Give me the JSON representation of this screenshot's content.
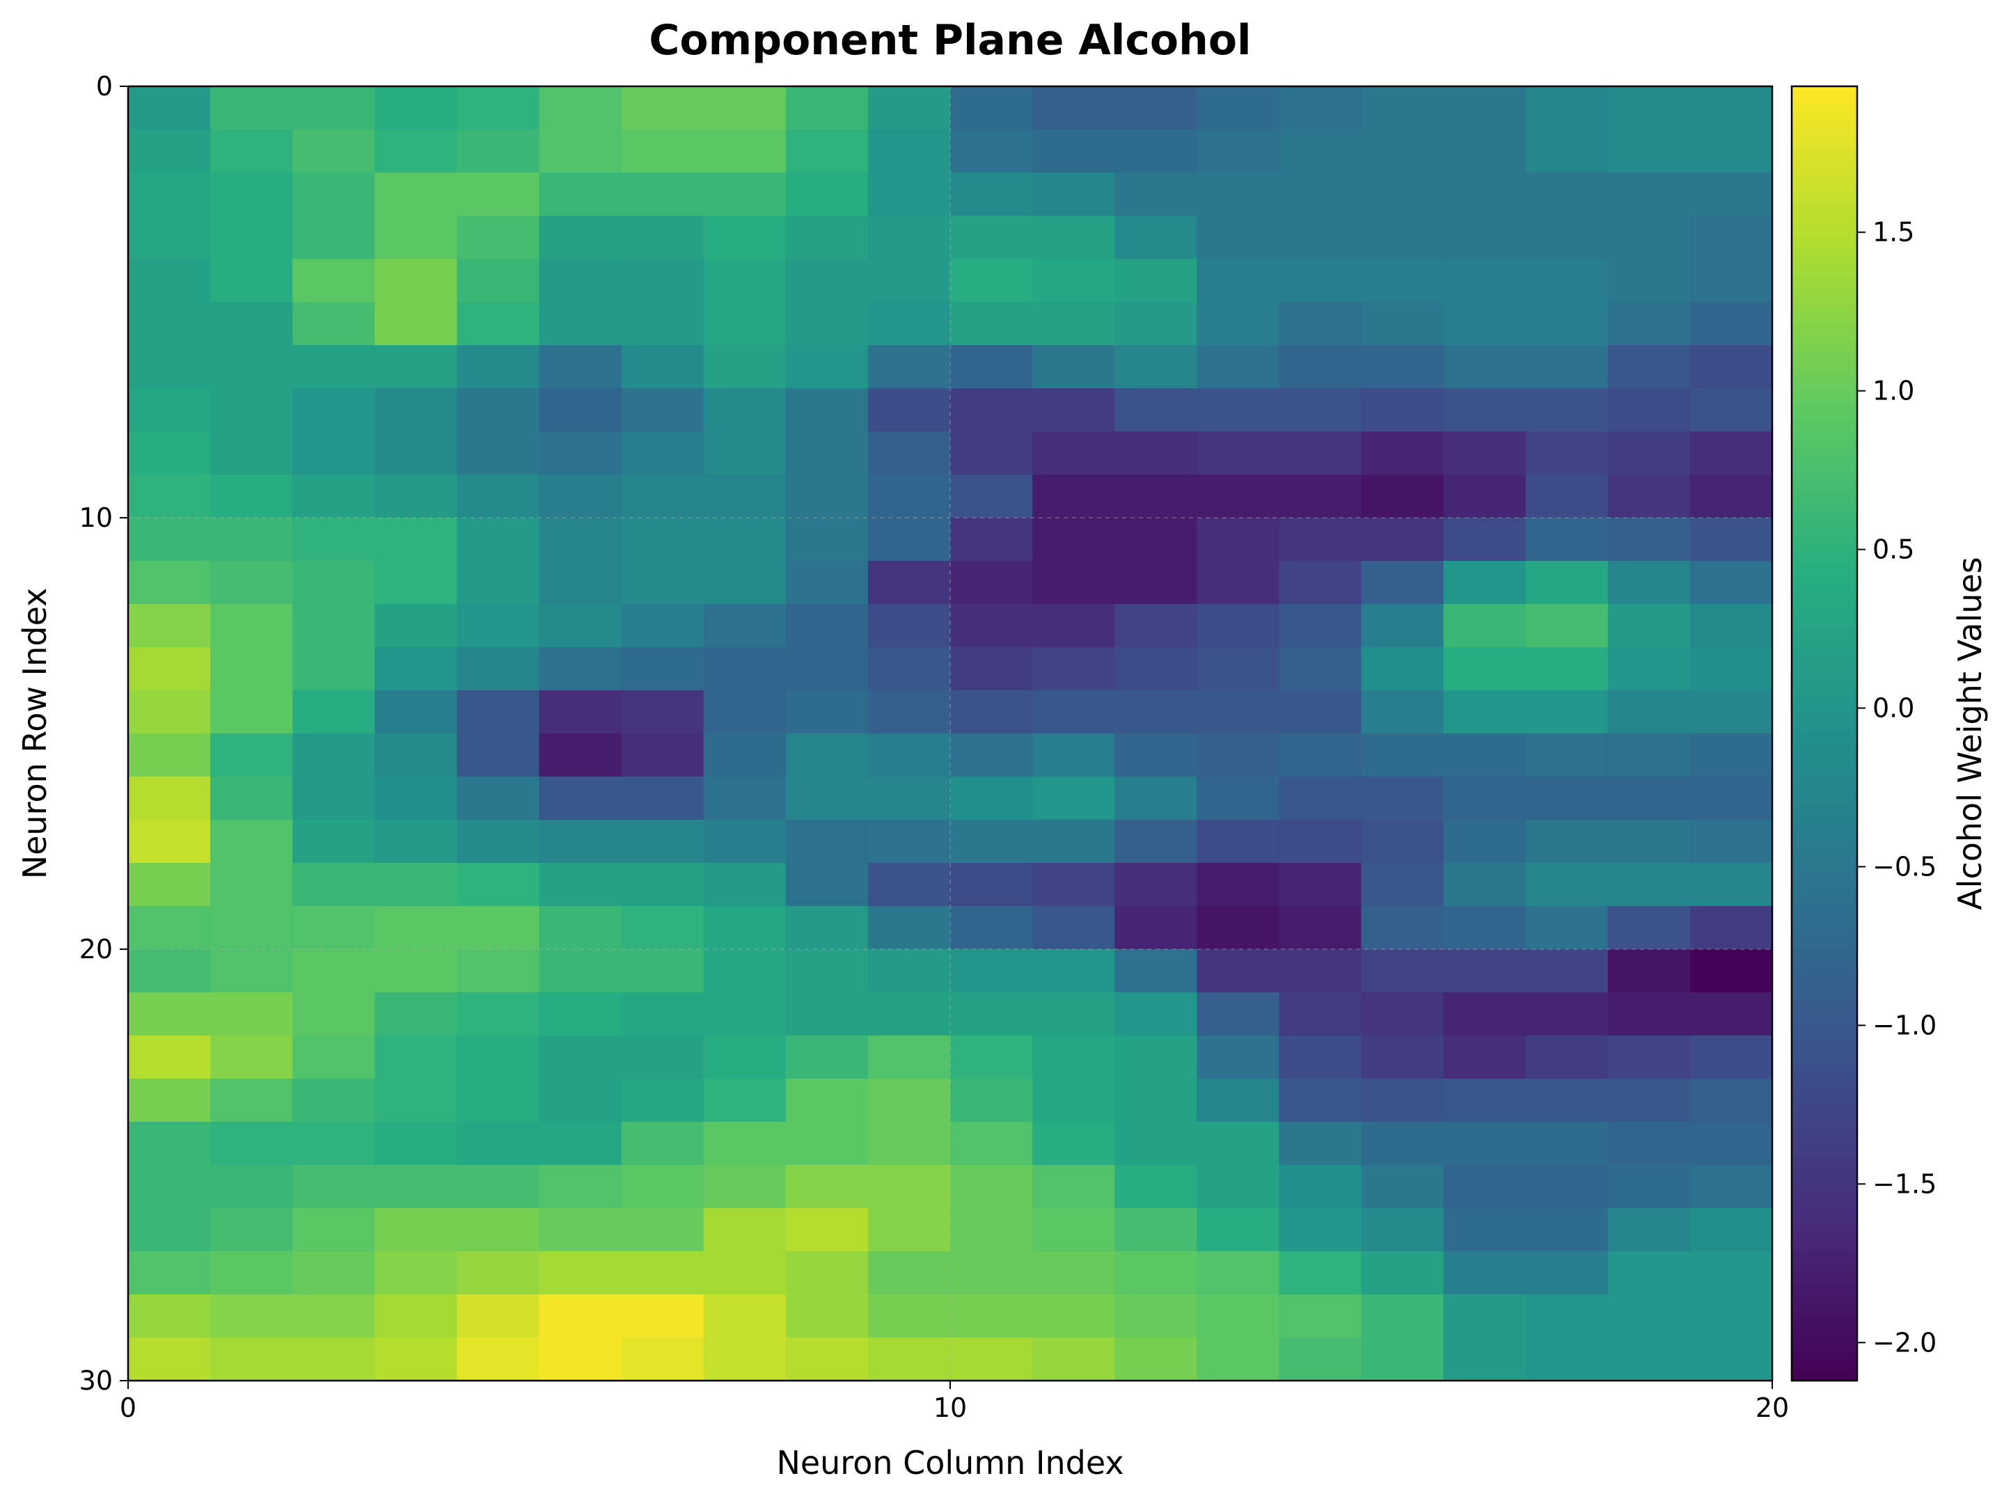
{
  "chart_data": {
    "type": "heatmap",
    "title": "Component Plane Alcohol",
    "xlabel": "Neuron Column Index",
    "ylabel": "Neuron Row Index",
    "colorbar_label": "Alcohol Weight Values",
    "colormap": "viridis",
    "xlim": [
      0,
      20
    ],
    "ylim": [
      30,
      0
    ],
    "xticks": [
      "0",
      "10",
      "20"
    ],
    "yticks": [
      "0",
      "10",
      "20",
      "30"
    ],
    "cbar_range": [
      -2.12,
      1.96
    ],
    "cbar_ticks": [
      "1.5",
      "1.0",
      "0.5",
      "0.0",
      "−0.5",
      "−1.0",
      "−1.5",
      "−2.0"
    ],
    "cbar_tick_values": [
      1.5,
      1.0,
      0.5,
      0.0,
      -0.5,
      -1.0,
      -1.5,
      -2.0
    ],
    "grid": true,
    "rows": 30,
    "cols": 20,
    "values": [
      [
        0.1,
        0.6,
        0.6,
        0.4,
        0.5,
        0.8,
        1.0,
        1.0,
        0.6,
        0.1,
        -0.7,
        -0.9,
        -0.9,
        -0.7,
        -0.6,
        -0.5,
        -0.5,
        -0.3,
        -0.2,
        -0.2
      ],
      [
        0.2,
        0.5,
        0.7,
        0.5,
        0.6,
        0.8,
        0.9,
        0.9,
        0.5,
        0.0,
        -0.6,
        -0.7,
        -0.7,
        -0.6,
        -0.5,
        -0.5,
        -0.5,
        -0.3,
        -0.2,
        -0.2
      ],
      [
        0.3,
        0.4,
        0.6,
        0.9,
        0.9,
        0.6,
        0.6,
        0.6,
        0.4,
        0.0,
        -0.2,
        -0.3,
        -0.5,
        -0.5,
        -0.5,
        -0.5,
        -0.5,
        -0.5,
        -0.5,
        -0.5
      ],
      [
        0.3,
        0.4,
        0.6,
        0.9,
        0.7,
        0.2,
        0.2,
        0.4,
        0.2,
        0.1,
        0.2,
        0.2,
        -0.2,
        -0.5,
        -0.5,
        -0.5,
        -0.5,
        -0.5,
        -0.5,
        -0.6
      ],
      [
        0.2,
        0.4,
        0.9,
        1.1,
        0.6,
        0.1,
        0.1,
        0.3,
        0.1,
        0.1,
        0.4,
        0.3,
        0.2,
        -0.4,
        -0.4,
        -0.4,
        -0.4,
        -0.4,
        -0.5,
        -0.6
      ],
      [
        0.2,
        0.2,
        0.7,
        1.1,
        0.5,
        0.1,
        0.1,
        0.3,
        0.1,
        0.0,
        0.2,
        0.2,
        0.1,
        -0.4,
        -0.6,
        -0.5,
        -0.4,
        -0.4,
        -0.6,
        -0.8
      ],
      [
        0.2,
        0.2,
        0.2,
        0.2,
        -0.2,
        -0.6,
        -0.2,
        0.2,
        0.0,
        -0.6,
        -0.8,
        -0.5,
        -0.3,
        -0.6,
        -0.8,
        -0.8,
        -0.6,
        -0.6,
        -1.0,
        -1.2
      ],
      [
        0.3,
        0.2,
        0.0,
        -0.2,
        -0.5,
        -0.8,
        -0.6,
        -0.2,
        -0.5,
        -1.2,
        -1.4,
        -1.4,
        -1.1,
        -1.1,
        -1.1,
        -1.2,
        -1.1,
        -1.1,
        -1.2,
        -1.1
      ],
      [
        0.4,
        0.2,
        0.0,
        -0.2,
        -0.5,
        -0.6,
        -0.4,
        -0.2,
        -0.5,
        -0.9,
        -1.4,
        -1.6,
        -1.6,
        -1.5,
        -1.5,
        -1.7,
        -1.6,
        -1.3,
        -1.4,
        -1.6
      ],
      [
        0.5,
        0.4,
        0.2,
        0.1,
        -0.2,
        -0.4,
        -0.3,
        -0.3,
        -0.5,
        -0.8,
        -1.1,
        -1.8,
        -1.8,
        -1.8,
        -1.8,
        -1.9,
        -1.7,
        -1.2,
        -1.5,
        -1.7
      ],
      [
        0.6,
        0.6,
        0.5,
        0.5,
        0.1,
        -0.3,
        -0.2,
        -0.2,
        -0.5,
        -0.8,
        -1.5,
        -1.8,
        -1.8,
        -1.6,
        -1.5,
        -1.5,
        -1.2,
        -0.8,
        -0.9,
        -1.1
      ],
      [
        0.8,
        0.7,
        0.6,
        0.5,
        0.1,
        -0.3,
        -0.2,
        -0.2,
        -0.6,
        -1.5,
        -1.7,
        -1.8,
        -1.8,
        -1.6,
        -1.3,
        -0.9,
        0.0,
        0.3,
        -0.3,
        -0.6
      ],
      [
        1.2,
        0.9,
        0.6,
        0.2,
        0.0,
        -0.2,
        -0.4,
        -0.6,
        -0.8,
        -1.2,
        -1.6,
        -1.6,
        -1.3,
        -1.2,
        -1.0,
        -0.4,
        0.6,
        0.7,
        0.1,
        -0.2
      ],
      [
        1.4,
        0.9,
        0.6,
        0.0,
        -0.3,
        -0.6,
        -0.7,
        -0.8,
        -0.8,
        -1.0,
        -1.4,
        -1.3,
        -1.2,
        -1.1,
        -0.9,
        -0.1,
        0.4,
        0.4,
        0.0,
        -0.1
      ],
      [
        1.3,
        0.9,
        0.4,
        -0.4,
        -1.0,
        -1.6,
        -1.5,
        -0.8,
        -0.7,
        -0.9,
        -1.1,
        -1.0,
        -1.0,
        -1.0,
        -1.0,
        -0.4,
        0.0,
        0.0,
        -0.3,
        -0.3
      ],
      [
        1.1,
        0.5,
        0.1,
        -0.2,
        -1.0,
        -1.8,
        -1.6,
        -0.7,
        -0.3,
        -0.4,
        -0.6,
        -0.4,
        -0.8,
        -0.9,
        -0.8,
        -0.7,
        -0.7,
        -0.6,
        -0.6,
        -0.7
      ],
      [
        1.5,
        0.6,
        0.1,
        -0.1,
        -0.5,
        -1.0,
        -1.0,
        -0.6,
        -0.3,
        -0.3,
        -0.1,
        0.0,
        -0.4,
        -0.8,
        -1.0,
        -1.0,
        -0.8,
        -0.8,
        -0.8,
        -0.8
      ],
      [
        1.6,
        0.8,
        0.2,
        0.1,
        -0.2,
        -0.3,
        -0.3,
        -0.4,
        -0.6,
        -0.6,
        -0.5,
        -0.5,
        -0.9,
        -1.2,
        -1.2,
        -1.1,
        -0.7,
        -0.5,
        -0.5,
        -0.6
      ],
      [
        1.1,
        0.8,
        0.6,
        0.6,
        0.5,
        0.2,
        0.2,
        0.1,
        -0.6,
        -1.1,
        -1.2,
        -1.3,
        -1.6,
        -1.8,
        -1.7,
        -1.0,
        -0.5,
        -0.3,
        -0.3,
        -0.3
      ],
      [
        0.8,
        0.8,
        0.8,
        0.9,
        0.9,
        0.6,
        0.5,
        0.3,
        0.1,
        -0.5,
        -0.8,
        -1.0,
        -1.7,
        -1.9,
        -1.8,
        -0.9,
        -0.8,
        -0.6,
        -1.1,
        -1.4
      ],
      [
        0.7,
        0.8,
        0.9,
        0.9,
        0.8,
        0.6,
        0.6,
        0.3,
        0.2,
        0.1,
        0.0,
        0.0,
        -0.6,
        -1.5,
        -1.5,
        -1.3,
        -1.3,
        -1.3,
        -1.9,
        -2.1
      ],
      [
        1.1,
        1.1,
        0.9,
        0.6,
        0.5,
        0.4,
        0.3,
        0.3,
        0.2,
        0.2,
        0.2,
        0.2,
        0.0,
        -0.9,
        -1.4,
        -1.5,
        -1.7,
        -1.7,
        -1.8,
        -1.8
      ],
      [
        1.5,
        1.2,
        0.8,
        0.5,
        0.4,
        0.2,
        0.2,
        0.4,
        0.6,
        0.8,
        0.5,
        0.3,
        0.2,
        -0.6,
        -1.2,
        -1.4,
        -1.6,
        -1.4,
        -1.3,
        -1.2
      ],
      [
        1.1,
        0.8,
        0.6,
        0.5,
        0.4,
        0.2,
        0.3,
        0.5,
        0.9,
        1.0,
        0.6,
        0.3,
        0.2,
        -0.3,
        -1.0,
        -1.1,
        -1.0,
        -1.0,
        -1.0,
        -0.9
      ],
      [
        0.6,
        0.5,
        0.5,
        0.4,
        0.3,
        0.3,
        0.7,
        0.9,
        0.9,
        1.0,
        0.8,
        0.4,
        0.2,
        0.2,
        -0.5,
        -0.7,
        -0.7,
        -0.7,
        -0.8,
        -0.8
      ],
      [
        0.6,
        0.6,
        0.7,
        0.7,
        0.7,
        0.8,
        0.9,
        1.0,
        1.2,
        1.2,
        1.0,
        0.8,
        0.4,
        0.2,
        -0.1,
        -0.5,
        -0.8,
        -0.8,
        -0.7,
        -0.6
      ],
      [
        0.6,
        0.7,
        0.9,
        1.1,
        1.1,
        1.0,
        1.0,
        1.4,
        1.5,
        1.2,
        1.0,
        0.9,
        0.7,
        0.4,
        0.0,
        -0.2,
        -0.7,
        -0.7,
        -0.3,
        -0.1
      ],
      [
        0.8,
        0.9,
        1.0,
        1.2,
        1.3,
        1.4,
        1.4,
        1.4,
        1.3,
        1.0,
        1.0,
        1.0,
        0.9,
        0.8,
        0.5,
        0.2,
        -0.4,
        -0.4,
        0.0,
        0.0
      ],
      [
        1.3,
        1.2,
        1.2,
        1.4,
        1.7,
        1.9,
        1.9,
        1.6,
        1.3,
        1.1,
        1.1,
        1.1,
        1.0,
        0.9,
        0.8,
        0.6,
        0.1,
        0.0,
        0.0,
        0.0
      ],
      [
        1.5,
        1.4,
        1.4,
        1.5,
        1.8,
        1.9,
        1.8,
        1.6,
        1.5,
        1.4,
        1.4,
        1.3,
        1.1,
        0.9,
        0.7,
        0.6,
        0.1,
        0.0,
        0.0,
        0.0
      ]
    ]
  }
}
